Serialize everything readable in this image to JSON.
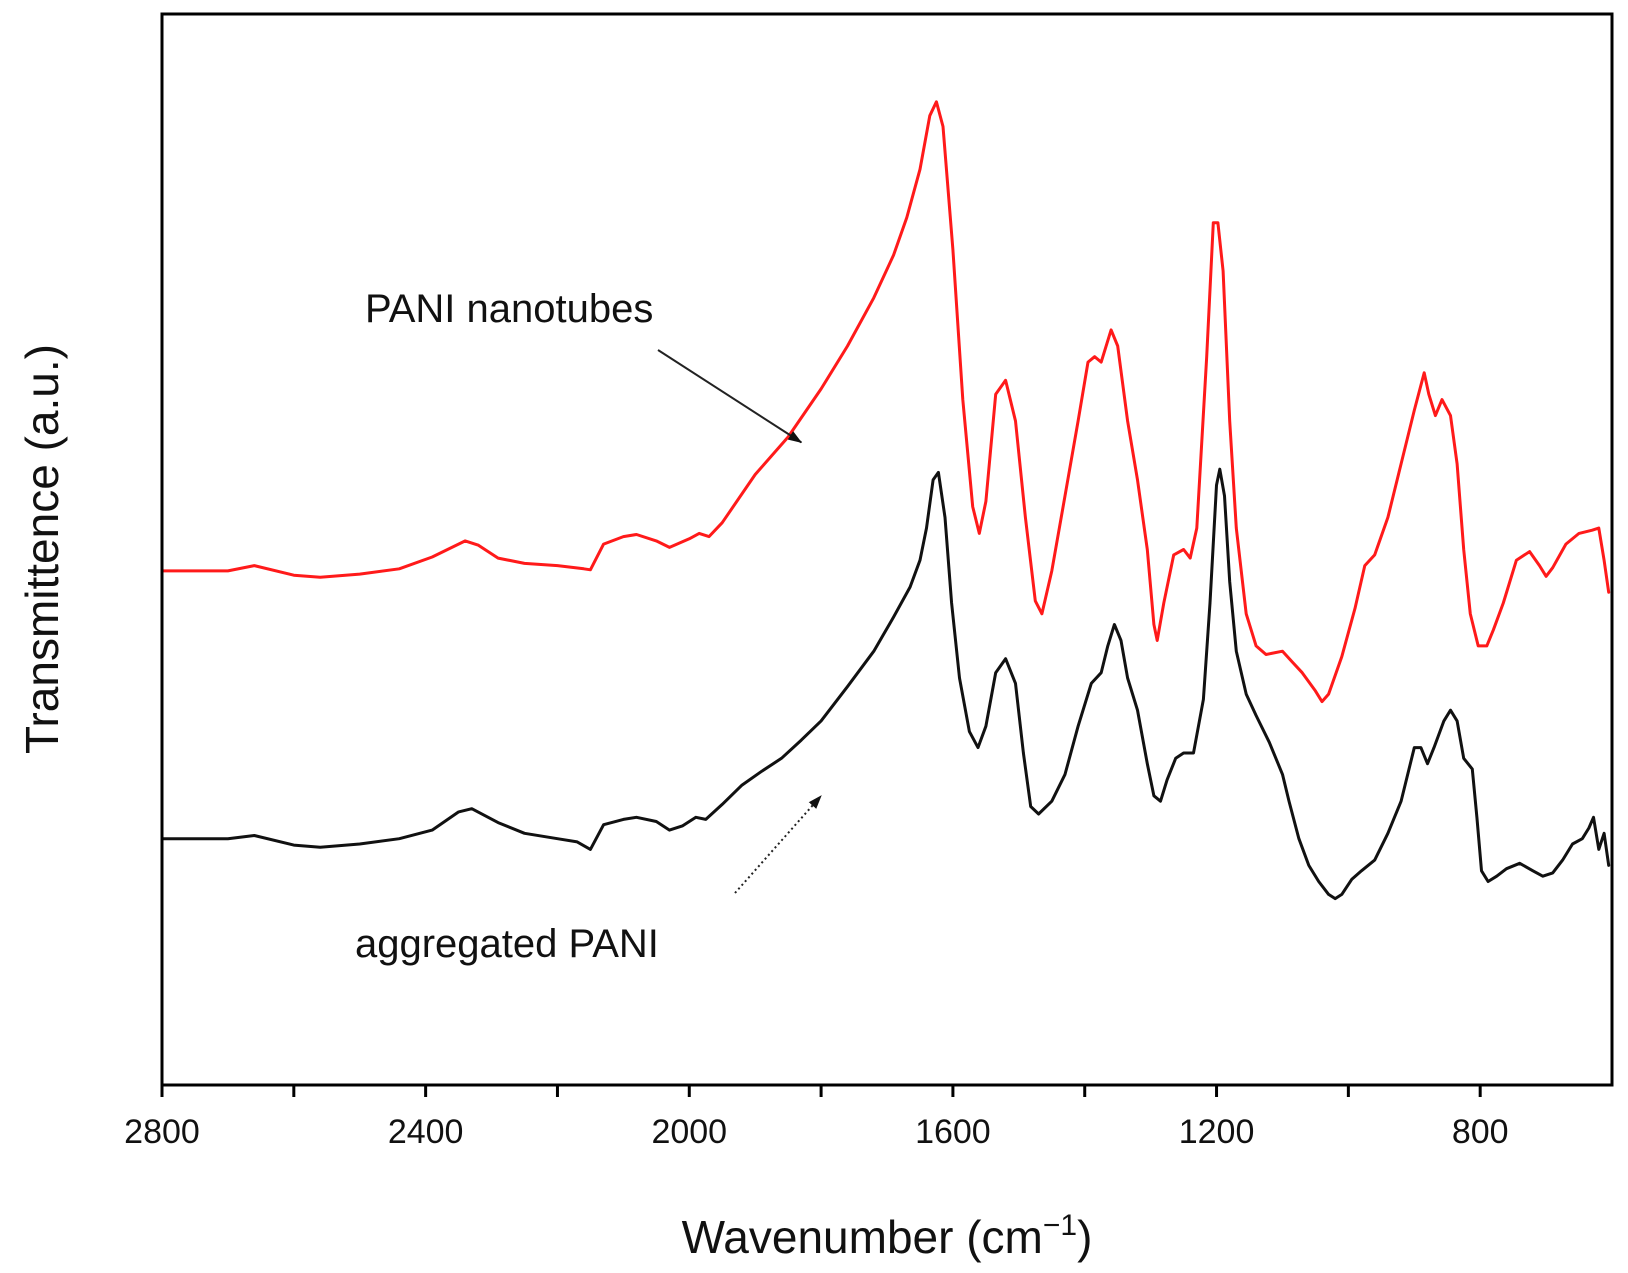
{
  "chart_data": {
    "type": "line",
    "xlabel": "Wavenumber  (cm",
    "xlabel_superscript": "−1",
    "xlabel_close": ")",
    "ylabel": "Transmittence (a.u.)",
    "xlim": [
      2800,
      600
    ],
    "x_reversed": true,
    "ylim": [
      0,
      100
    ],
    "y_ticks_shown": false,
    "grid": false,
    "legend": "none",
    "x_ticks": [
      2800,
      2600,
      2400,
      2200,
      2000,
      1800,
      1600,
      1400,
      1200,
      1000,
      800
    ],
    "x_tick_labels": [
      {
        "value": 2800,
        "label": "2800"
      },
      {
        "value": 2400,
        "label": "2400"
      },
      {
        "value": 2000,
        "label": "2000"
      },
      {
        "value": 1600,
        "label": "1600"
      },
      {
        "value": 1200,
        "label": "1200"
      },
      {
        "value": 800,
        "label": "800"
      }
    ],
    "series": [
      {
        "color": "#ff1a1a",
        "points": [
          [
            2800,
            48.0
          ],
          [
            2700,
            48.0
          ],
          [
            2660,
            48.5
          ],
          [
            2600,
            47.6
          ],
          [
            2560,
            47.4
          ],
          [
            2500,
            47.7
          ],
          [
            2440,
            48.2
          ],
          [
            2390,
            49.3
          ],
          [
            2340,
            50.8
          ],
          [
            2320,
            50.4
          ],
          [
            2290,
            49.2
          ],
          [
            2250,
            48.7
          ],
          [
            2200,
            48.5
          ],
          [
            2160,
            48.2
          ],
          [
            2150,
            48.1
          ],
          [
            2130,
            50.5
          ],
          [
            2100,
            51.2
          ],
          [
            2080,
            51.4
          ],
          [
            2050,
            50.8
          ],
          [
            2030,
            50.2
          ],
          [
            2000,
            51.0
          ],
          [
            1985,
            51.5
          ],
          [
            1970,
            51.2
          ],
          [
            1950,
            52.5
          ],
          [
            1900,
            57.0
          ],
          [
            1850,
            60.5
          ],
          [
            1800,
            65.0
          ],
          [
            1760,
            69.0
          ],
          [
            1720,
            73.5
          ],
          [
            1690,
            77.5
          ],
          [
            1670,
            81.0
          ],
          [
            1650,
            85.5
          ],
          [
            1635,
            90.5
          ],
          [
            1625,
            91.8
          ],
          [
            1615,
            89.5
          ],
          [
            1600,
            78.0
          ],
          [
            1585,
            64.0
          ],
          [
            1570,
            54.0
          ],
          [
            1560,
            51.5
          ],
          [
            1550,
            54.5
          ],
          [
            1535,
            64.5
          ],
          [
            1520,
            65.8
          ],
          [
            1505,
            62.0
          ],
          [
            1490,
            53.0
          ],
          [
            1475,
            45.2
          ],
          [
            1465,
            44.0
          ],
          [
            1450,
            48.0
          ],
          [
            1430,
            55.0
          ],
          [
            1410,
            62.0
          ],
          [
            1395,
            67.5
          ],
          [
            1385,
            68.0
          ],
          [
            1375,
            67.5
          ],
          [
            1360,
            70.5
          ],
          [
            1350,
            69.0
          ],
          [
            1335,
            62.0
          ],
          [
            1320,
            56.5
          ],
          [
            1305,
            50.0
          ],
          [
            1295,
            43.0
          ],
          [
            1290,
            41.5
          ],
          [
            1280,
            45.0
          ],
          [
            1265,
            49.5
          ],
          [
            1250,
            50.0
          ],
          [
            1240,
            49.2
          ],
          [
            1230,
            52.0
          ],
          [
            1215,
            68.0
          ],
          [
            1205,
            80.5
          ],
          [
            1198,
            80.5
          ],
          [
            1190,
            76.0
          ],
          [
            1180,
            62.0
          ],
          [
            1170,
            52.0
          ],
          [
            1155,
            44.0
          ],
          [
            1140,
            41.0
          ],
          [
            1125,
            40.2
          ],
          [
            1100,
            40.5
          ],
          [
            1085,
            39.5
          ],
          [
            1070,
            38.5
          ],
          [
            1050,
            36.8
          ],
          [
            1040,
            35.8
          ],
          [
            1030,
            36.5
          ],
          [
            1010,
            40.0
          ],
          [
            990,
            44.5
          ],
          [
            975,
            48.5
          ],
          [
            960,
            49.5
          ],
          [
            940,
            53.0
          ],
          [
            920,
            58.0
          ],
          [
            900,
            63.0
          ],
          [
            885,
            66.5
          ],
          [
            878,
            64.5
          ],
          [
            868,
            62.5
          ],
          [
            858,
            64.0
          ],
          [
            845,
            62.5
          ],
          [
            835,
            58.0
          ],
          [
            825,
            50.0
          ],
          [
            815,
            44.0
          ],
          [
            803,
            41.0
          ],
          [
            790,
            41.0
          ],
          [
            780,
            42.5
          ],
          [
            765,
            45.0
          ],
          [
            745,
            49.0
          ],
          [
            725,
            49.8
          ],
          [
            710,
            48.5
          ],
          [
            700,
            47.5
          ],
          [
            690,
            48.3
          ],
          [
            670,
            50.5
          ],
          [
            650,
            51.5
          ],
          [
            630,
            51.8
          ],
          [
            620,
            52.0
          ],
          [
            612,
            49.0
          ],
          [
            605,
            46.0
          ]
        ]
      },
      {
        "color": "#111111",
        "points": [
          [
            2800,
            23.0
          ],
          [
            2700,
            23.0
          ],
          [
            2660,
            23.3
          ],
          [
            2600,
            22.4
          ],
          [
            2560,
            22.2
          ],
          [
            2500,
            22.5
          ],
          [
            2440,
            23.0
          ],
          [
            2390,
            23.8
          ],
          [
            2350,
            25.5
          ],
          [
            2330,
            25.8
          ],
          [
            2290,
            24.5
          ],
          [
            2250,
            23.5
          ],
          [
            2200,
            23.0
          ],
          [
            2170,
            22.7
          ],
          [
            2150,
            22.0
          ],
          [
            2130,
            24.3
          ],
          [
            2100,
            24.8
          ],
          [
            2080,
            25.0
          ],
          [
            2050,
            24.6
          ],
          [
            2030,
            23.8
          ],
          [
            2010,
            24.2
          ],
          [
            1990,
            25.0
          ],
          [
            1975,
            24.8
          ],
          [
            1950,
            26.2
          ],
          [
            1920,
            28.0
          ],
          [
            1890,
            29.3
          ],
          [
            1860,
            30.5
          ],
          [
            1830,
            32.2
          ],
          [
            1800,
            34.0
          ],
          [
            1760,
            37.2
          ],
          [
            1720,
            40.5
          ],
          [
            1690,
            43.7
          ],
          [
            1665,
            46.5
          ],
          [
            1650,
            49.0
          ],
          [
            1640,
            52.0
          ],
          [
            1630,
            56.5
          ],
          [
            1622,
            57.2
          ],
          [
            1612,
            53.0
          ],
          [
            1602,
            45.0
          ],
          [
            1590,
            38.0
          ],
          [
            1575,
            33.0
          ],
          [
            1562,
            31.5
          ],
          [
            1550,
            33.5
          ],
          [
            1535,
            38.5
          ],
          [
            1520,
            39.8
          ],
          [
            1505,
            37.5
          ],
          [
            1493,
            31.0
          ],
          [
            1482,
            26.0
          ],
          [
            1470,
            25.3
          ],
          [
            1450,
            26.5
          ],
          [
            1430,
            29.0
          ],
          [
            1410,
            33.5
          ],
          [
            1390,
            37.5
          ],
          [
            1375,
            38.5
          ],
          [
            1365,
            41.0
          ],
          [
            1355,
            43.0
          ],
          [
            1345,
            41.5
          ],
          [
            1335,
            38.0
          ],
          [
            1320,
            35.0
          ],
          [
            1305,
            30.0
          ],
          [
            1295,
            27.0
          ],
          [
            1285,
            26.5
          ],
          [
            1275,
            28.5
          ],
          [
            1262,
            30.5
          ],
          [
            1250,
            31.0
          ],
          [
            1235,
            31.0
          ],
          [
            1220,
            36.0
          ],
          [
            1210,
            45.0
          ],
          [
            1200,
            56.0
          ],
          [
            1195,
            57.5
          ],
          [
            1188,
            55.0
          ],
          [
            1180,
            47.0
          ],
          [
            1170,
            40.5
          ],
          [
            1155,
            36.5
          ],
          [
            1140,
            34.5
          ],
          [
            1120,
            32.0
          ],
          [
            1100,
            29.0
          ],
          [
            1090,
            26.5
          ],
          [
            1075,
            23.0
          ],
          [
            1060,
            20.5
          ],
          [
            1045,
            19.0
          ],
          [
            1030,
            17.8
          ],
          [
            1020,
            17.4
          ],
          [
            1010,
            17.8
          ],
          [
            995,
            19.2
          ],
          [
            980,
            20.0
          ],
          [
            960,
            21.0
          ],
          [
            940,
            23.5
          ],
          [
            920,
            26.5
          ],
          [
            900,
            31.5
          ],
          [
            890,
            31.5
          ],
          [
            880,
            30.0
          ],
          [
            870,
            31.5
          ],
          [
            855,
            34.0
          ],
          [
            845,
            35.0
          ],
          [
            835,
            34.0
          ],
          [
            825,
            30.5
          ],
          [
            812,
            29.5
          ],
          [
            805,
            25.0
          ],
          [
            798,
            20.0
          ],
          [
            788,
            19.0
          ],
          [
            775,
            19.5
          ],
          [
            760,
            20.2
          ],
          [
            740,
            20.7
          ],
          [
            720,
            20.0
          ],
          [
            705,
            19.5
          ],
          [
            690,
            19.8
          ],
          [
            675,
            21.0
          ],
          [
            660,
            22.5
          ],
          [
            645,
            23.0
          ],
          [
            635,
            24.0
          ],
          [
            628,
            25.0
          ],
          [
            620,
            22.0
          ],
          [
            612,
            23.5
          ],
          [
            605,
            20.5
          ]
        ]
      }
    ],
    "annotations": [
      {
        "text": "PANI nanotubes",
        "series_index": 0,
        "arrow_to": [
          1830,
          60.0
        ]
      },
      {
        "text": "aggregated PANI",
        "series_index": 1,
        "arrow_to": [
          1800,
          27.0
        ]
      }
    ]
  }
}
